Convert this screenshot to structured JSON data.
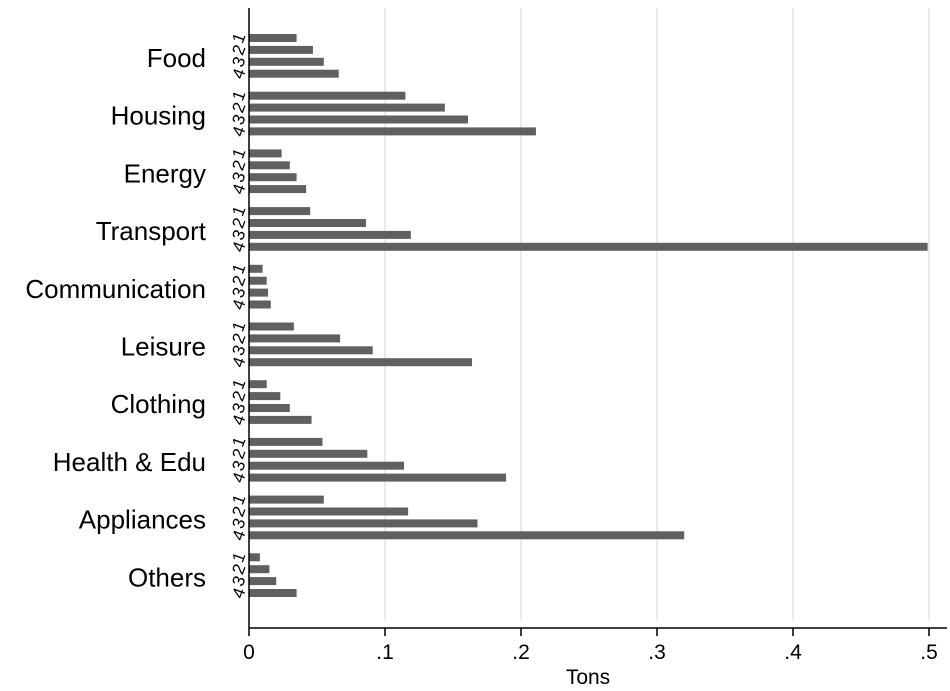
{
  "chart_data": {
    "type": "bar",
    "orientation": "horizontal",
    "xlabel": "Tons",
    "xlim": [
      0,
      0.5
    ],
    "xticks": [
      0,
      0.1,
      0.2,
      0.3,
      0.4,
      0.5
    ],
    "xtick_labels": [
      "0",
      ".1",
      ".2",
      ".3",
      ".4",
      ".5"
    ],
    "grid": "vertical",
    "bar_color": "#606060",
    "grid_color": "#dcdcdc",
    "sub_labels": [
      "1",
      "2",
      "3",
      "4"
    ],
    "categories": [
      {
        "name": "Food",
        "values": [
          0.035,
          0.047,
          0.055,
          0.066
        ]
      },
      {
        "name": "Housing",
        "values": [
          0.115,
          0.144,
          0.161,
          0.211
        ]
      },
      {
        "name": "Energy",
        "values": [
          0.024,
          0.03,
          0.035,
          0.042
        ]
      },
      {
        "name": "Transport",
        "values": [
          0.045,
          0.086,
          0.119,
          0.499
        ]
      },
      {
        "name": "Communication",
        "values": [
          0.01,
          0.013,
          0.014,
          0.016
        ]
      },
      {
        "name": "Leisure",
        "values": [
          0.033,
          0.067,
          0.091,
          0.164
        ]
      },
      {
        "name": "Clothing",
        "values": [
          0.013,
          0.023,
          0.03,
          0.046
        ]
      },
      {
        "name": "Health & Edu",
        "values": [
          0.054,
          0.087,
          0.114,
          0.189
        ]
      },
      {
        "name": "Appliances",
        "values": [
          0.055,
          0.117,
          0.168,
          0.32
        ]
      },
      {
        "name": "Others",
        "values": [
          0.008,
          0.015,
          0.02,
          0.035
        ]
      }
    ]
  }
}
